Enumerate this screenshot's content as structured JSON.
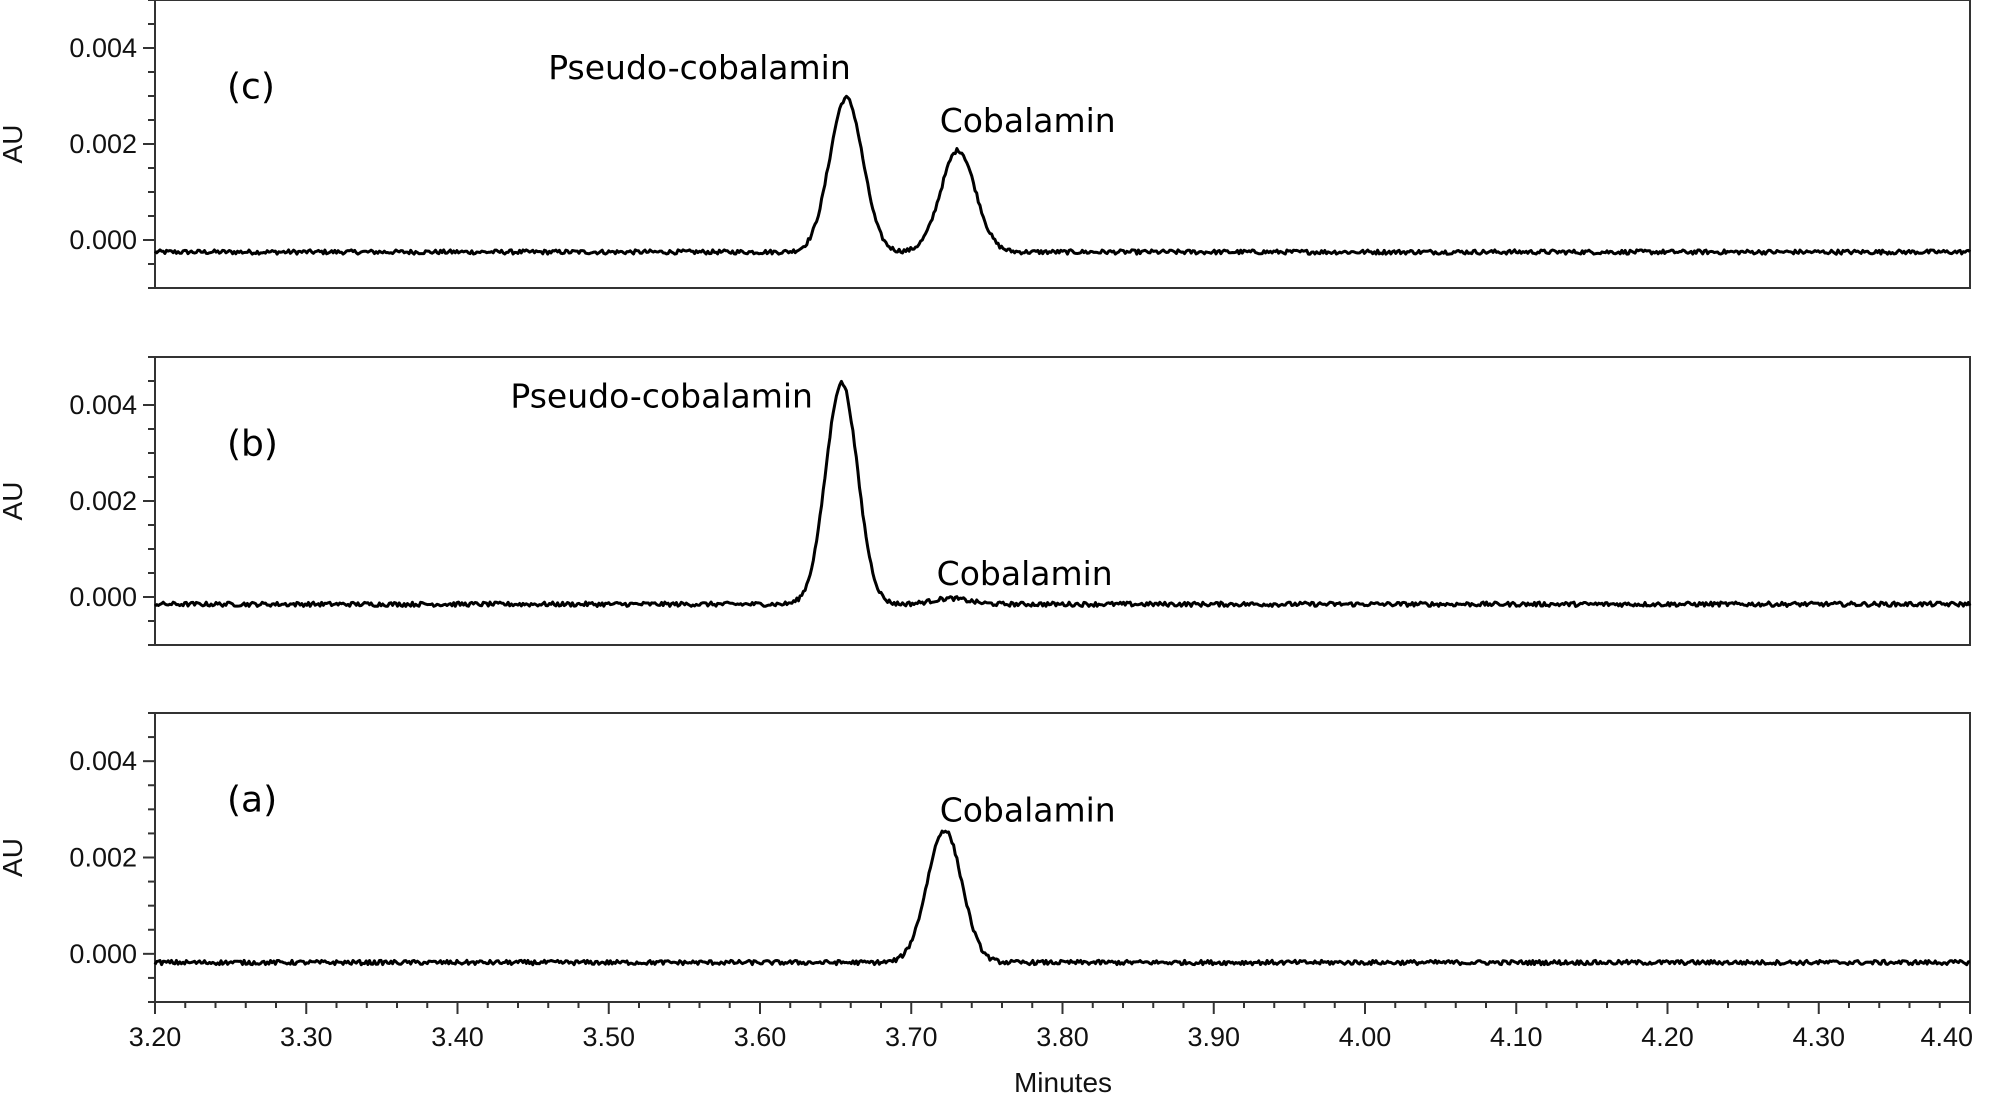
{
  "chart_data": {
    "type": "line",
    "xlabel": "Minutes",
    "xlim": [
      3.2,
      4.4
    ],
    "x_ticks": [
      "3.20",
      "3.30",
      "3.40",
      "3.50",
      "3.60",
      "3.70",
      "3.80",
      "3.90",
      "4.00",
      "4.10",
      "4.20",
      "4.30",
      "4.40"
    ],
    "panels": [
      {
        "label": "(c)",
        "ylabel": "AU",
        "ylim": [
          -0.001,
          0.005
        ],
        "y_ticks": [
          "0.004",
          "0.002",
          "0.000"
        ],
        "baseline": -0.00025,
        "peaks": [
          {
            "name": "Pseudo-cobalamin",
            "rt": 3.657,
            "height": 0.00321,
            "width": 0.011
          },
          {
            "name": "Cobalamin",
            "rt": 3.731,
            "height": 0.00212,
            "width": 0.0115
          }
        ],
        "annotations": [
          {
            "text": "Pseudo-cobalamin",
            "x": 3.56,
            "y": 0.0036
          },
          {
            "text": "Cobalamin",
            "x": 3.777,
            "y": 0.0025
          }
        ]
      },
      {
        "label": "(b)",
        "ylabel": "AU",
        "ylim": [
          -0.001,
          0.005
        ],
        "y_ticks": [
          "0.004",
          "0.002",
          "0.000"
        ],
        "baseline": -0.00015,
        "peaks": [
          {
            "name": "Pseudo-cobalamin",
            "rt": 3.654,
            "height": 0.00461,
            "width": 0.0105
          },
          {
            "name": "Cobalamin",
            "rt": 3.726,
            "height": 0.00012,
            "width": 0.012
          }
        ],
        "annotations": [
          {
            "text": "Pseudo-cobalamin",
            "x": 3.535,
            "y": 0.0042
          },
          {
            "text": "Cobalamin",
            "x": 3.775,
            "y": 0.0005
          }
        ]
      },
      {
        "label": "(a)",
        "ylabel": "AU",
        "ylim": [
          -0.001,
          0.005
        ],
        "y_ticks": [
          "0.004",
          "0.002",
          "0.000"
        ],
        "baseline": -0.00018,
        "peaks": [
          {
            "name": "Cobalamin",
            "rt": 3.722,
            "height": 0.00275,
            "width": 0.0115
          }
        ],
        "annotations": [
          {
            "text": "Cobalamin",
            "x": 3.777,
            "y": 0.003
          }
        ]
      }
    ]
  }
}
